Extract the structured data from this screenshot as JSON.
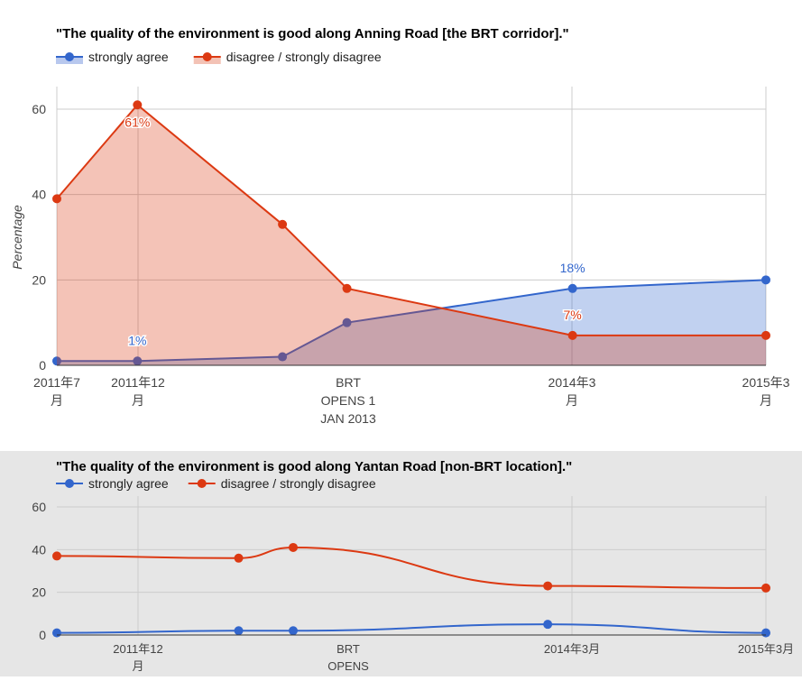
{
  "chart_data": [
    {
      "type": "area",
      "title": "\"The quality of the environment is good along Anning Road [the BRT corridor].\"",
      "ylabel": "Percentage",
      "ylim": [
        0,
        60
      ],
      "yticks": [
        0,
        20,
        40,
        60
      ],
      "x_ticks": [
        {
          "label": [
            "2011年7",
            "月"
          ]
        },
        {
          "label": [
            "2011年12",
            "月"
          ]
        },
        {
          "label": [
            "BRT",
            "OPENS 1",
            "JAN 2013"
          ]
        },
        {
          "label": [
            "2014年3",
            "月"
          ]
        },
        {
          "label": [
            "2015年3",
            "月"
          ]
        }
      ],
      "x_dates": [
        "2011-07",
        "2011-12",
        "2012-09",
        "2013-01",
        "2014-03",
        "2015-03"
      ],
      "legend_position": "top-left",
      "grid": true,
      "series": [
        {
          "name": "strongly agree",
          "color": "#3366cc",
          "fill": "#b8c8ee",
          "values": [
            1,
            1,
            2,
            10,
            18,
            20
          ]
        },
        {
          "name": "disagree / strongly disagree",
          "color": "#dc3912",
          "fill": "#f3c2b5",
          "values": [
            39,
            61,
            33,
            18,
            7,
            7
          ]
        }
      ],
      "annotations": [
        {
          "series": 1,
          "index": 1,
          "text": "61%"
        },
        {
          "series": 0,
          "index": 1,
          "text": "1%"
        },
        {
          "series": 0,
          "index": 4,
          "text": "18%"
        },
        {
          "series": 1,
          "index": 4,
          "text": "7%"
        }
      ]
    },
    {
      "type": "line",
      "title": "\"The quality of the environment is good along Yantan Road [non-BRT location].\"",
      "ylim": [
        0,
        60
      ],
      "yticks": [
        0,
        20,
        40,
        60
      ],
      "x_ticks": [
        {
          "label": [
            "2011年12",
            "月"
          ]
        },
        {
          "label": [
            "BRT",
            "OPENS"
          ]
        },
        {
          "label": [
            "2014年3月"
          ]
        },
        {
          "label": [
            "2015年3月"
          ]
        }
      ],
      "x_dates": [
        "2011-12",
        "2012-10",
        "2013-01",
        "2014-03",
        "2015-03"
      ],
      "legend_position": "top-left",
      "grid": true,
      "series": [
        {
          "name": "strongly agree",
          "color": "#3366cc",
          "values": [
            1,
            2,
            2,
            5,
            1
          ]
        },
        {
          "name": "disagree / strongly disagree",
          "color": "#dc3912",
          "values": [
            37,
            36,
            41,
            23,
            22
          ]
        }
      ]
    }
  ]
}
